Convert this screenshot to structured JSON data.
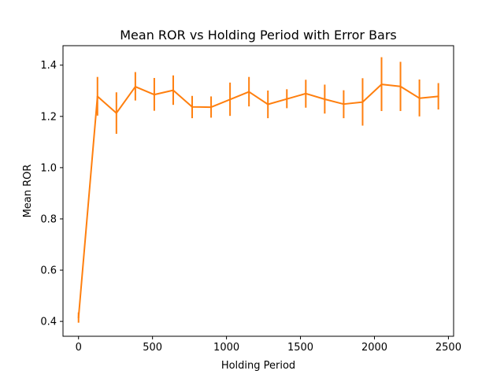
{
  "chart_data": {
    "type": "line",
    "title": "Mean ROR vs Holding Period with Error Bars",
    "xlabel": "Holding Period",
    "ylabel": "Mean ROR",
    "xlim": [
      -105,
      2535
    ],
    "ylim": [
      0.342,
      1.476
    ],
    "grid": false,
    "x_ticks": [
      {
        "value": 0,
        "label": "0"
      },
      {
        "value": 500,
        "label": "500"
      },
      {
        "value": 1000,
        "label": "1000"
      },
      {
        "value": 1500,
        "label": "1500"
      },
      {
        "value": 2000,
        "label": "2000"
      },
      {
        "value": 2500,
        "label": "2500"
      }
    ],
    "y_ticks": [
      {
        "value": 0.4,
        "label": "0.4"
      },
      {
        "value": 0.6,
        "label": "0.6"
      },
      {
        "value": 0.8,
        "label": "0.8"
      },
      {
        "value": 1.0,
        "label": "1.0"
      },
      {
        "value": 1.2,
        "label": "1.2"
      },
      {
        "value": 1.4,
        "label": "1.4"
      }
    ],
    "series": [
      {
        "color": "#ff7f0e",
        "x": [
          0,
          128,
          256,
          384,
          512,
          640,
          768,
          896,
          1024,
          1152,
          1280,
          1408,
          1536,
          1664,
          1792,
          1920,
          2048,
          2176,
          2304,
          2432
        ],
        "y": [
          0.415,
          1.278,
          1.213,
          1.316,
          1.285,
          1.302,
          1.237,
          1.236,
          1.266,
          1.296,
          1.247,
          1.268,
          1.289,
          1.267,
          1.248,
          1.256,
          1.325,
          1.317,
          1.271,
          1.278
        ],
        "err_low": [
          0.395,
          1.203,
          1.132,
          1.262,
          1.222,
          1.245,
          1.193,
          1.195,
          1.202,
          1.239,
          1.193,
          1.232,
          1.234,
          1.211,
          1.193,
          1.164,
          1.221,
          1.221,
          1.2,
          1.227
        ],
        "err_high": [
          0.435,
          1.354,
          1.294,
          1.373,
          1.35,
          1.36,
          1.28,
          1.278,
          1.332,
          1.354,
          1.301,
          1.306,
          1.343,
          1.324,
          1.302,
          1.349,
          1.431,
          1.413,
          1.344,
          1.33
        ]
      }
    ]
  }
}
